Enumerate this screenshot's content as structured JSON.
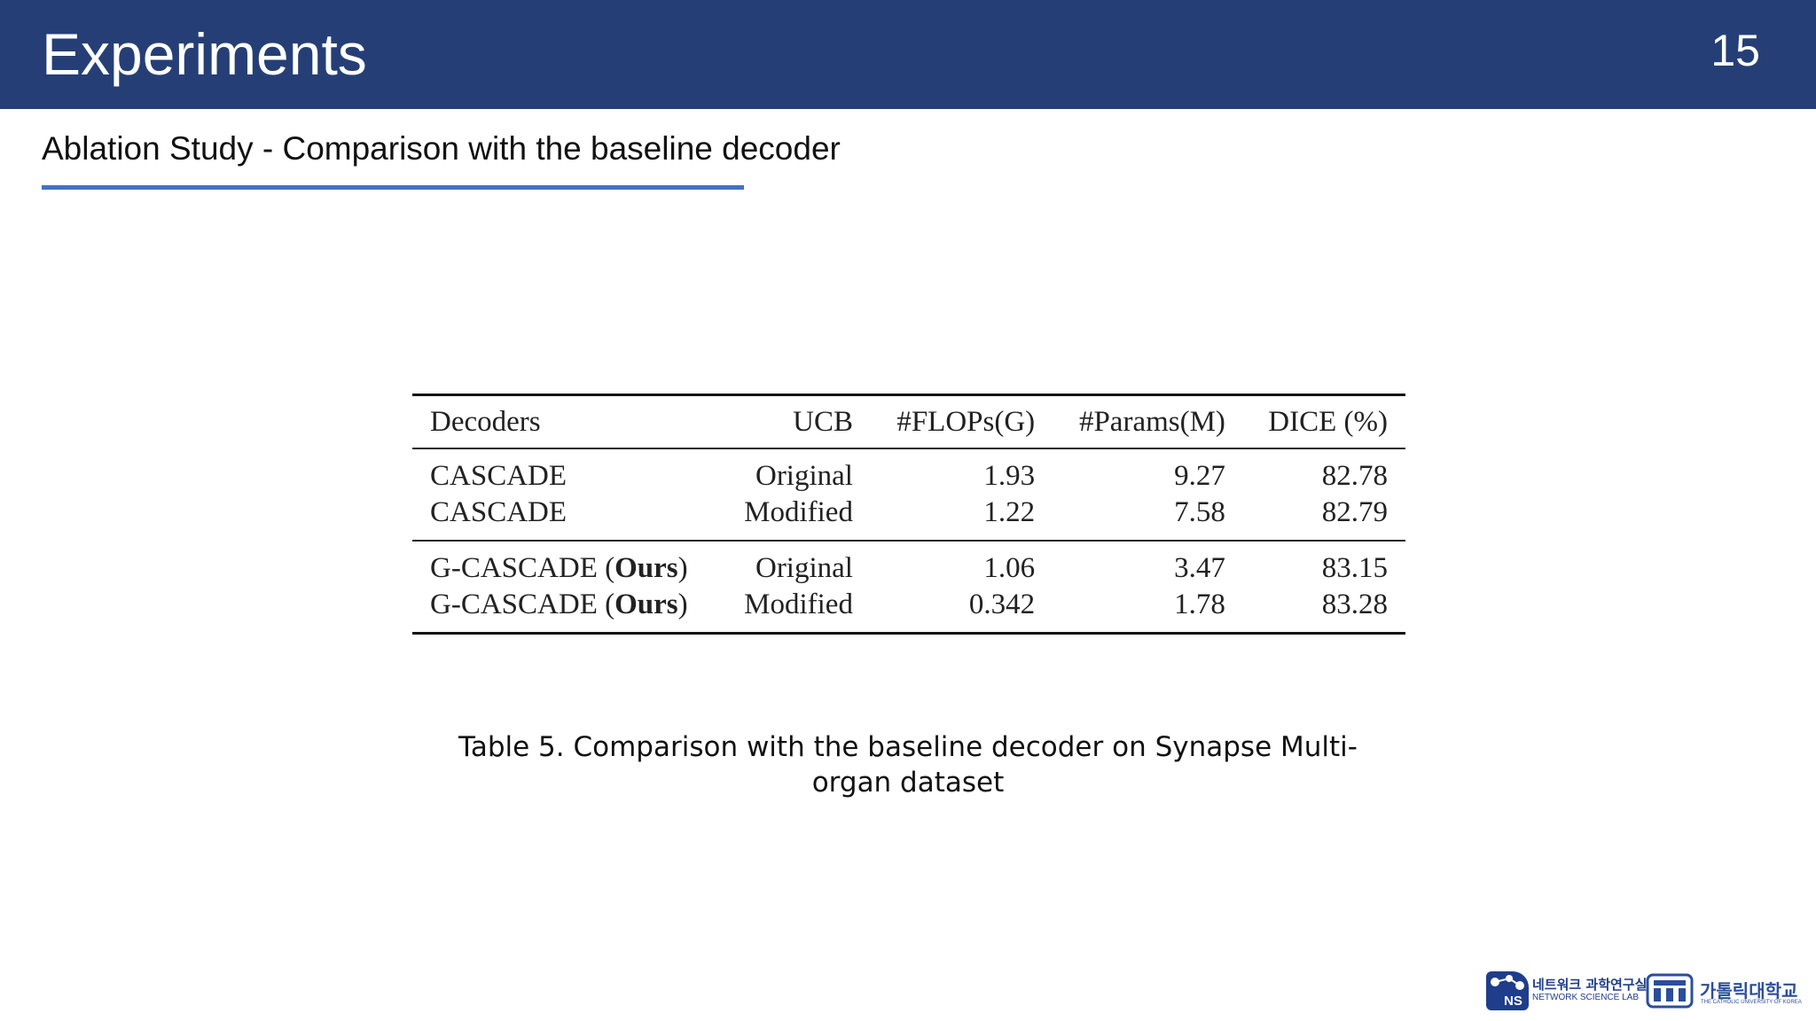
{
  "slide": {
    "title": "Experiments",
    "page_number": "15",
    "subtitle": "Ablation Study - Comparison with the baseline decoder"
  },
  "table": {
    "headers": [
      "Decoders",
      "UCB",
      "#FLOPs(G)",
      "#Params(M)",
      "DICE (%)"
    ],
    "rows": [
      {
        "decoder": "CASCADE",
        "decoder_ours": "",
        "ucb": "Original",
        "flops": "1.93",
        "params": "9.27",
        "dice": "82.78"
      },
      {
        "decoder": "CASCADE",
        "decoder_ours": "",
        "ucb": "Modified",
        "flops": "1.22",
        "params": "7.58",
        "dice": "82.79"
      },
      {
        "decoder": "G-CASCADE (",
        "decoder_ours": "Ours",
        "decoder_close": ")",
        "ucb": "Original",
        "flops": "1.06",
        "params": "3.47",
        "dice": "83.15"
      },
      {
        "decoder": "G-CASCADE (",
        "decoder_ours": "Ours",
        "decoder_close": ")",
        "ucb": "Modified",
        "flops": "0.342",
        "params": "1.78",
        "dice": "83.28"
      }
    ]
  },
  "caption": {
    "line1": "Table 5. Comparison with the baseline decoder on Synapse Multi-",
    "line2": "organ dataset"
  },
  "logos": {
    "ns_korean": "네트워크 과학연구실",
    "ns_english": "NETWORK SCIENCE LAB",
    "ns_mark_text": "NS",
    "cuk_korean": "가톨릭대학교",
    "cuk_english": "THE CATHOLIC UNIVERSITY OF KOREA",
    "brand_color": "#1f3d8a"
  },
  "colors": {
    "header_bar": "#253f76",
    "underline": "#4472c4"
  }
}
